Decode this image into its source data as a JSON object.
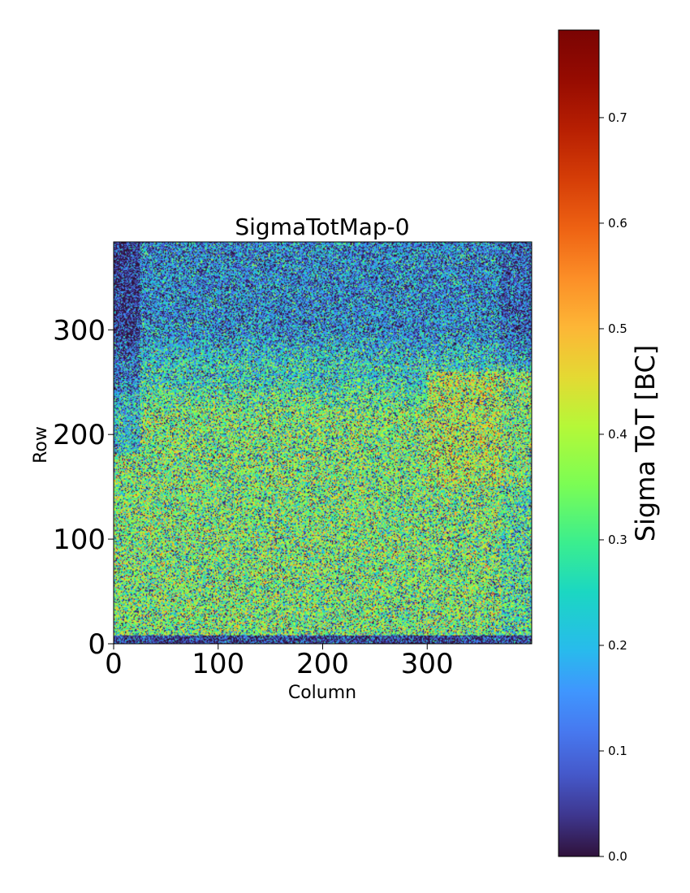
{
  "chart_data": {
    "type": "heatmap",
    "title": "SigmaTotMap-0",
    "xlabel": "Column",
    "ylabel": "Row",
    "xlim": [
      0,
      400
    ],
    "ylim": [
      0,
      384
    ],
    "xticks": [
      0,
      100,
      200,
      300
    ],
    "yticks": [
      0,
      100,
      200,
      300
    ],
    "xtick_labels": [
      "0",
      "100",
      "200",
      "300"
    ],
    "ytick_labels": [
      "0",
      "100",
      "200",
      "300"
    ],
    "colormap": "turbo",
    "colorbar": {
      "label": "Sigma ToT [BC]",
      "range": [
        0.0,
        0.783
      ],
      "ticks": [
        0.0,
        0.1,
        0.2,
        0.3,
        0.4,
        0.5,
        0.6,
        0.7
      ],
      "tick_labels": [
        "0.0",
        "0.1",
        "0.2",
        "0.3",
        "0.4",
        "0.5",
        "0.6",
        "0.7"
      ]
    },
    "description_of_values": {
      "bulk_mean": 0.35,
      "top_region_rows_260_384_mean": 0.15,
      "bottom_edge_rows_0_8_mean": 0.05,
      "right_region_columns_300_400_rows_150_260_mean": 0.4
    }
  }
}
